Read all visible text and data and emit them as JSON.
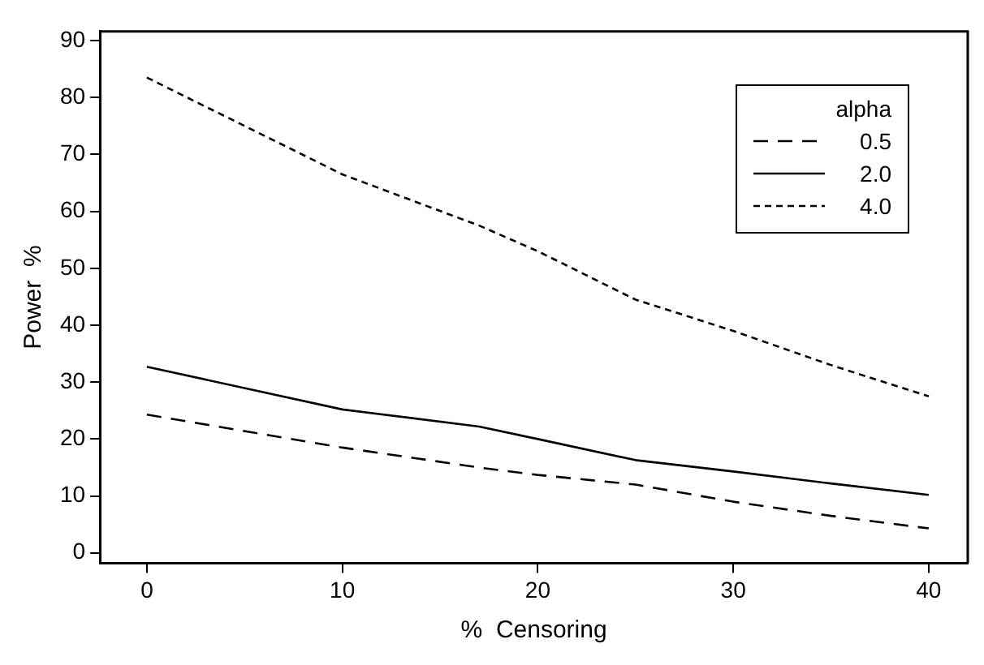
{
  "chart_data": {
    "type": "line",
    "xlabel": "%  Censoring",
    "ylabel": "Power  %",
    "legend_title": "alpha",
    "legend": "top right",
    "grid": false,
    "marker": "none",
    "xlim": [
      -2.4,
      42
    ],
    "ylim": [
      -1.8,
      91.6
    ],
    "xticks": [
      0,
      10,
      20,
      30,
      40
    ],
    "yticks": [
      0,
      10,
      20,
      30,
      40,
      50,
      60,
      70,
      80,
      90
    ],
    "series": [
      {
        "name": "0.5",
        "color": "#000000",
        "line_style": "dashed",
        "x": [
          0,
          10,
          17,
          20,
          25,
          30,
          35,
          40
        ],
        "values": [
          24.3,
          18.5,
          15,
          13.7,
          12,
          9,
          6.5,
          4.3
        ]
      },
      {
        "name": "2.0",
        "color": "#000000",
        "line_style": "solid",
        "x": [
          0,
          10,
          17,
          20,
          25,
          30,
          35,
          40
        ],
        "values": [
          32.7,
          25.2,
          22.2,
          20,
          16.3,
          14.3,
          12.2,
          10.2
        ]
      },
      {
        "name": "4.0",
        "color": "#000000",
        "line_style": "dotted",
        "x": [
          0,
          10,
          17,
          20,
          25,
          30,
          35,
          40
        ],
        "values": [
          83.5,
          66.5,
          57.5,
          53,
          44.5,
          39,
          33,
          27.5
        ]
      }
    ]
  }
}
